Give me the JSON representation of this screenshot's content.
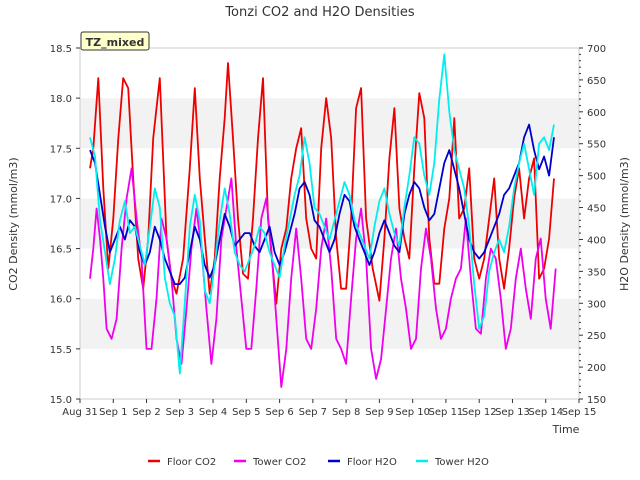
{
  "chart_data": {
    "type": "line",
    "title": "Tonzi CO2 and H2O Densities",
    "xlabel": "Time",
    "ylabel_left": "CO2 Density (mmol/m3)",
    "ylabel_right": "H2O Density (mmol/m3)",
    "ylim_left": [
      15.0,
      18.5
    ],
    "ylim_right": [
      150,
      700
    ],
    "yticks_left": [
      "15.0",
      "15.5",
      "16.0",
      "16.5",
      "17.0",
      "17.5",
      "18.0",
      "18.5"
    ],
    "yticks_right": [
      "150",
      "200",
      "250",
      "300",
      "350",
      "400",
      "450",
      "500",
      "550",
      "600",
      "650",
      "700"
    ],
    "xticks": [
      "Aug 31",
      "Sep 1",
      "Sep 2",
      "Sep 3",
      "Sep 4",
      "Sep 5",
      "Sep 6",
      "Sep 7",
      "Sep 8",
      "Sep 9",
      "Sep 10",
      "Sep 11",
      "Sep 12",
      "Sep 13",
      "Sep 14",
      "Sep 15"
    ],
    "x_unit": "days since Aug 31 00:00",
    "annotation": "TZ_mixed",
    "grid": "horizontal bands",
    "legend": "bottom",
    "series": [
      {
        "name": "Floor CO2",
        "axis": "left",
        "color": "#ee0000",
        "x": [
          0.3,
          0.4,
          0.55,
          0.7,
          0.85,
          1.0,
          1.15,
          1.3,
          1.45,
          1.6,
          1.75,
          1.9,
          2.05,
          2.2,
          2.4,
          2.6,
          2.75,
          2.9,
          3.1,
          3.3,
          3.45,
          3.6,
          3.75,
          3.9,
          4.05,
          4.2,
          4.35,
          4.45,
          4.6,
          4.75,
          4.9,
          5.05,
          5.2,
          5.35,
          5.5,
          5.65,
          5.8,
          5.9,
          6.05,
          6.2,
          6.35,
          6.5,
          6.65,
          6.8,
          6.95,
          7.1,
          7.25,
          7.4,
          7.55,
          7.7,
          7.85,
          8.0,
          8.15,
          8.3,
          8.45,
          8.6,
          8.8,
          9.0,
          9.15,
          9.3,
          9.45,
          9.6,
          9.75,
          9.9,
          10.05,
          10.2,
          10.35,
          10.5,
          10.65,
          10.8,
          10.95,
          11.1,
          11.25,
          11.4,
          11.55,
          11.7,
          11.85,
          12.0,
          12.15,
          12.3,
          12.45,
          12.6,
          12.75,
          12.9,
          13.05,
          13.2,
          13.35,
          13.5,
          13.65,
          13.8,
          13.95,
          14.1,
          14.25
        ],
        "y": [
          17.3,
          17.5,
          18.2,
          17.1,
          16.3,
          16.8,
          17.6,
          18.2,
          18.1,
          17.2,
          16.4,
          16.1,
          16.6,
          17.6,
          18.2,
          16.6,
          16.2,
          16.05,
          16.4,
          17.3,
          18.1,
          17.2,
          16.6,
          16.05,
          16.4,
          17.2,
          17.8,
          18.35,
          17.6,
          16.8,
          16.25,
          16.2,
          16.8,
          17.6,
          18.2,
          16.8,
          16.3,
          15.95,
          16.5,
          16.7,
          17.2,
          17.5,
          17.7,
          16.8,
          16.5,
          16.4,
          17.5,
          18.0,
          17.6,
          16.6,
          16.1,
          16.1,
          16.8,
          17.9,
          18.1,
          16.8,
          16.3,
          15.98,
          16.6,
          17.4,
          17.9,
          16.9,
          16.6,
          16.4,
          17.3,
          18.05,
          17.8,
          16.6,
          16.15,
          16.15,
          16.7,
          17.0,
          17.8,
          16.8,
          16.9,
          17.3,
          16.4,
          16.2,
          16.4,
          16.8,
          17.2,
          16.4,
          16.1,
          16.5,
          17.0,
          17.3,
          16.8,
          17.2,
          17.4,
          16.2,
          16.3,
          16.6,
          17.2
        ]
      },
      {
        "name": "Tower CO2",
        "axis": "left",
        "color": "#ee00ee",
        "x": [
          0.3,
          0.4,
          0.5,
          0.6,
          0.7,
          0.8,
          0.95,
          1.1,
          1.25,
          1.4,
          1.55,
          1.7,
          1.85,
          2.0,
          2.15,
          2.3,
          2.45,
          2.6,
          2.75,
          2.9,
          3.05,
          3.2,
          3.35,
          3.5,
          3.65,
          3.8,
          3.95,
          4.1,
          4.25,
          4.4,
          4.55,
          4.7,
          4.85,
          5.0,
          5.15,
          5.3,
          5.45,
          5.6,
          5.75,
          5.9,
          6.05,
          6.2,
          6.35,
          6.5,
          6.65,
          6.8,
          6.95,
          7.1,
          7.25,
          7.4,
          7.55,
          7.7,
          7.85,
          8.0,
          8.15,
          8.3,
          8.45,
          8.6,
          8.75,
          8.9,
          9.05,
          9.2,
          9.35,
          9.5,
          9.65,
          9.8,
          9.95,
          10.1,
          10.25,
          10.4,
          10.55,
          10.7,
          10.85,
          11.0,
          11.15,
          11.3,
          11.45,
          11.6,
          11.75,
          11.9,
          12.05,
          12.2,
          12.35,
          12.5,
          12.65,
          12.8,
          12.95,
          13.1,
          13.25,
          13.4,
          13.55,
          13.7,
          13.85,
          14.0,
          14.15,
          14.3
        ],
        "y": [
          16.2,
          16.5,
          16.9,
          16.6,
          16.2,
          15.7,
          15.6,
          15.8,
          16.5,
          17.0,
          17.3,
          16.8,
          16.4,
          15.5,
          15.5,
          16.0,
          16.8,
          16.6,
          16.2,
          15.6,
          15.35,
          15.9,
          16.5,
          16.9,
          16.5,
          15.9,
          15.35,
          15.8,
          16.6,
          16.9,
          17.2,
          16.5,
          16.0,
          15.5,
          15.5,
          16.1,
          16.8,
          17.0,
          16.5,
          15.8,
          15.12,
          15.5,
          16.2,
          16.7,
          16.2,
          15.6,
          15.5,
          15.9,
          16.5,
          16.8,
          16.3,
          15.6,
          15.5,
          15.35,
          16.0,
          16.6,
          16.9,
          16.4,
          15.5,
          15.2,
          15.4,
          15.9,
          16.4,
          16.7,
          16.2,
          15.9,
          15.5,
          15.6,
          16.3,
          16.7,
          16.4,
          15.9,
          15.6,
          15.7,
          16.0,
          16.2,
          16.3,
          16.8,
          16.2,
          15.7,
          15.65,
          16.2,
          16.5,
          16.4,
          16.0,
          15.5,
          15.7,
          16.2,
          16.5,
          16.1,
          15.8,
          16.4,
          16.6,
          16.0,
          15.7,
          16.3
        ]
      },
      {
        "name": "Floor H2O",
        "axis": "right",
        "color": "#0000cc",
        "x": [
          0.3,
          0.45,
          0.6,
          0.75,
          0.9,
          1.05,
          1.2,
          1.35,
          1.5,
          1.65,
          1.8,
          1.95,
          2.1,
          2.25,
          2.4,
          2.55,
          2.7,
          2.85,
          3.0,
          3.15,
          3.3,
          3.45,
          3.6,
          3.75,
          3.9,
          4.05,
          4.2,
          4.35,
          4.5,
          4.65,
          4.8,
          4.95,
          5.1,
          5.25,
          5.4,
          5.55,
          5.7,
          5.85,
          6.0,
          6.15,
          6.3,
          6.45,
          6.6,
          6.75,
          6.9,
          7.05,
          7.2,
          7.35,
          7.5,
          7.65,
          7.8,
          7.95,
          8.1,
          8.25,
          8.4,
          8.55,
          8.7,
          8.85,
          9.0,
          9.15,
          9.3,
          9.45,
          9.6,
          9.75,
          9.9,
          10.05,
          10.2,
          10.35,
          10.5,
          10.65,
          10.8,
          10.95,
          11.1,
          11.25,
          11.4,
          11.55,
          11.7,
          11.85,
          12.0,
          12.15,
          12.3,
          12.45,
          12.6,
          12.75,
          12.9,
          13.05,
          13.2,
          13.35,
          13.5,
          13.65,
          13.8,
          13.95,
          14.1,
          14.25
        ],
        "y": [
          540,
          520,
          470,
          420,
          380,
          400,
          420,
          400,
          430,
          420,
          380,
          360,
          380,
          420,
          400,
          370,
          350,
          330,
          330,
          340,
          380,
          420,
          400,
          360,
          340,
          360,
          400,
          440,
          420,
          390,
          400,
          410,
          410,
          390,
          380,
          400,
          420,
          380,
          360,
          380,
          410,
          440,
          480,
          490,
          470,
          430,
          420,
          400,
          380,
          400,
          440,
          470,
          460,
          420,
          400,
          380,
          360,
          380,
          410,
          430,
          410,
          390,
          380,
          440,
          470,
          490,
          480,
          450,
          430,
          440,
          480,
          520,
          540,
          510,
          480,
          440,
          400,
          380,
          370,
          380,
          400,
          420,
          440,
          470,
          480,
          500,
          520,
          560,
          580,
          540,
          510,
          530,
          500,
          560
        ]
      },
      {
        "name": "Tower H2O",
        "axis": "right",
        "color": "#00eeee",
        "x": [
          0.3,
          0.45,
          0.6,
          0.75,
          0.9,
          1.05,
          1.2,
          1.35,
          1.5,
          1.65,
          1.8,
          1.95,
          2.1,
          2.25,
          2.4,
          2.55,
          2.7,
          2.85,
          3.0,
          3.15,
          3.3,
          3.45,
          3.6,
          3.75,
          3.9,
          4.05,
          4.2,
          4.35,
          4.5,
          4.65,
          4.8,
          4.95,
          5.1,
          5.25,
          5.4,
          5.55,
          5.7,
          5.85,
          6.0,
          6.15,
          6.3,
          6.45,
          6.6,
          6.75,
          6.9,
          7.05,
          7.2,
          7.35,
          7.5,
          7.65,
          7.8,
          7.95,
          8.1,
          8.25,
          8.4,
          8.55,
          8.7,
          8.85,
          9.0,
          9.15,
          9.3,
          9.45,
          9.6,
          9.75,
          9.9,
          10.05,
          10.2,
          10.35,
          10.5,
          10.65,
          10.8,
          10.95,
          11.1,
          11.25,
          11.4,
          11.55,
          11.7,
          11.85,
          12.0,
          12.15,
          12.3,
          12.45,
          12.6,
          12.75,
          12.9,
          13.05,
          13.2,
          13.35,
          13.5,
          13.65,
          13.8,
          13.95,
          14.1,
          14.25
        ],
        "y": [
          560,
          530,
          430,
          380,
          330,
          370,
          430,
          460,
          410,
          420,
          390,
          360,
          420,
          480,
          450,
          340,
          300,
          280,
          190,
          300,
          420,
          470,
          430,
          320,
          300,
          360,
          430,
          480,
          440,
          380,
          360,
          350,
          370,
          390,
          420,
          410,
          380,
          360,
          340,
          390,
          430,
          470,
          500,
          560,
          520,
          450,
          440,
          420,
          400,
          430,
          460,
          490,
          470,
          430,
          410,
          390,
          370,
          420,
          460,
          480,
          440,
          410,
          390,
          450,
          500,
          560,
          550,
          500,
          470,
          520,
          620,
          690,
          600,
          540,
          510,
          480,
          420,
          330,
          260,
          280,
          350,
          380,
          400,
          380,
          420,
          480,
          520,
          550,
          510,
          470,
          550,
          560,
          540,
          580
        ]
      }
    ]
  }
}
